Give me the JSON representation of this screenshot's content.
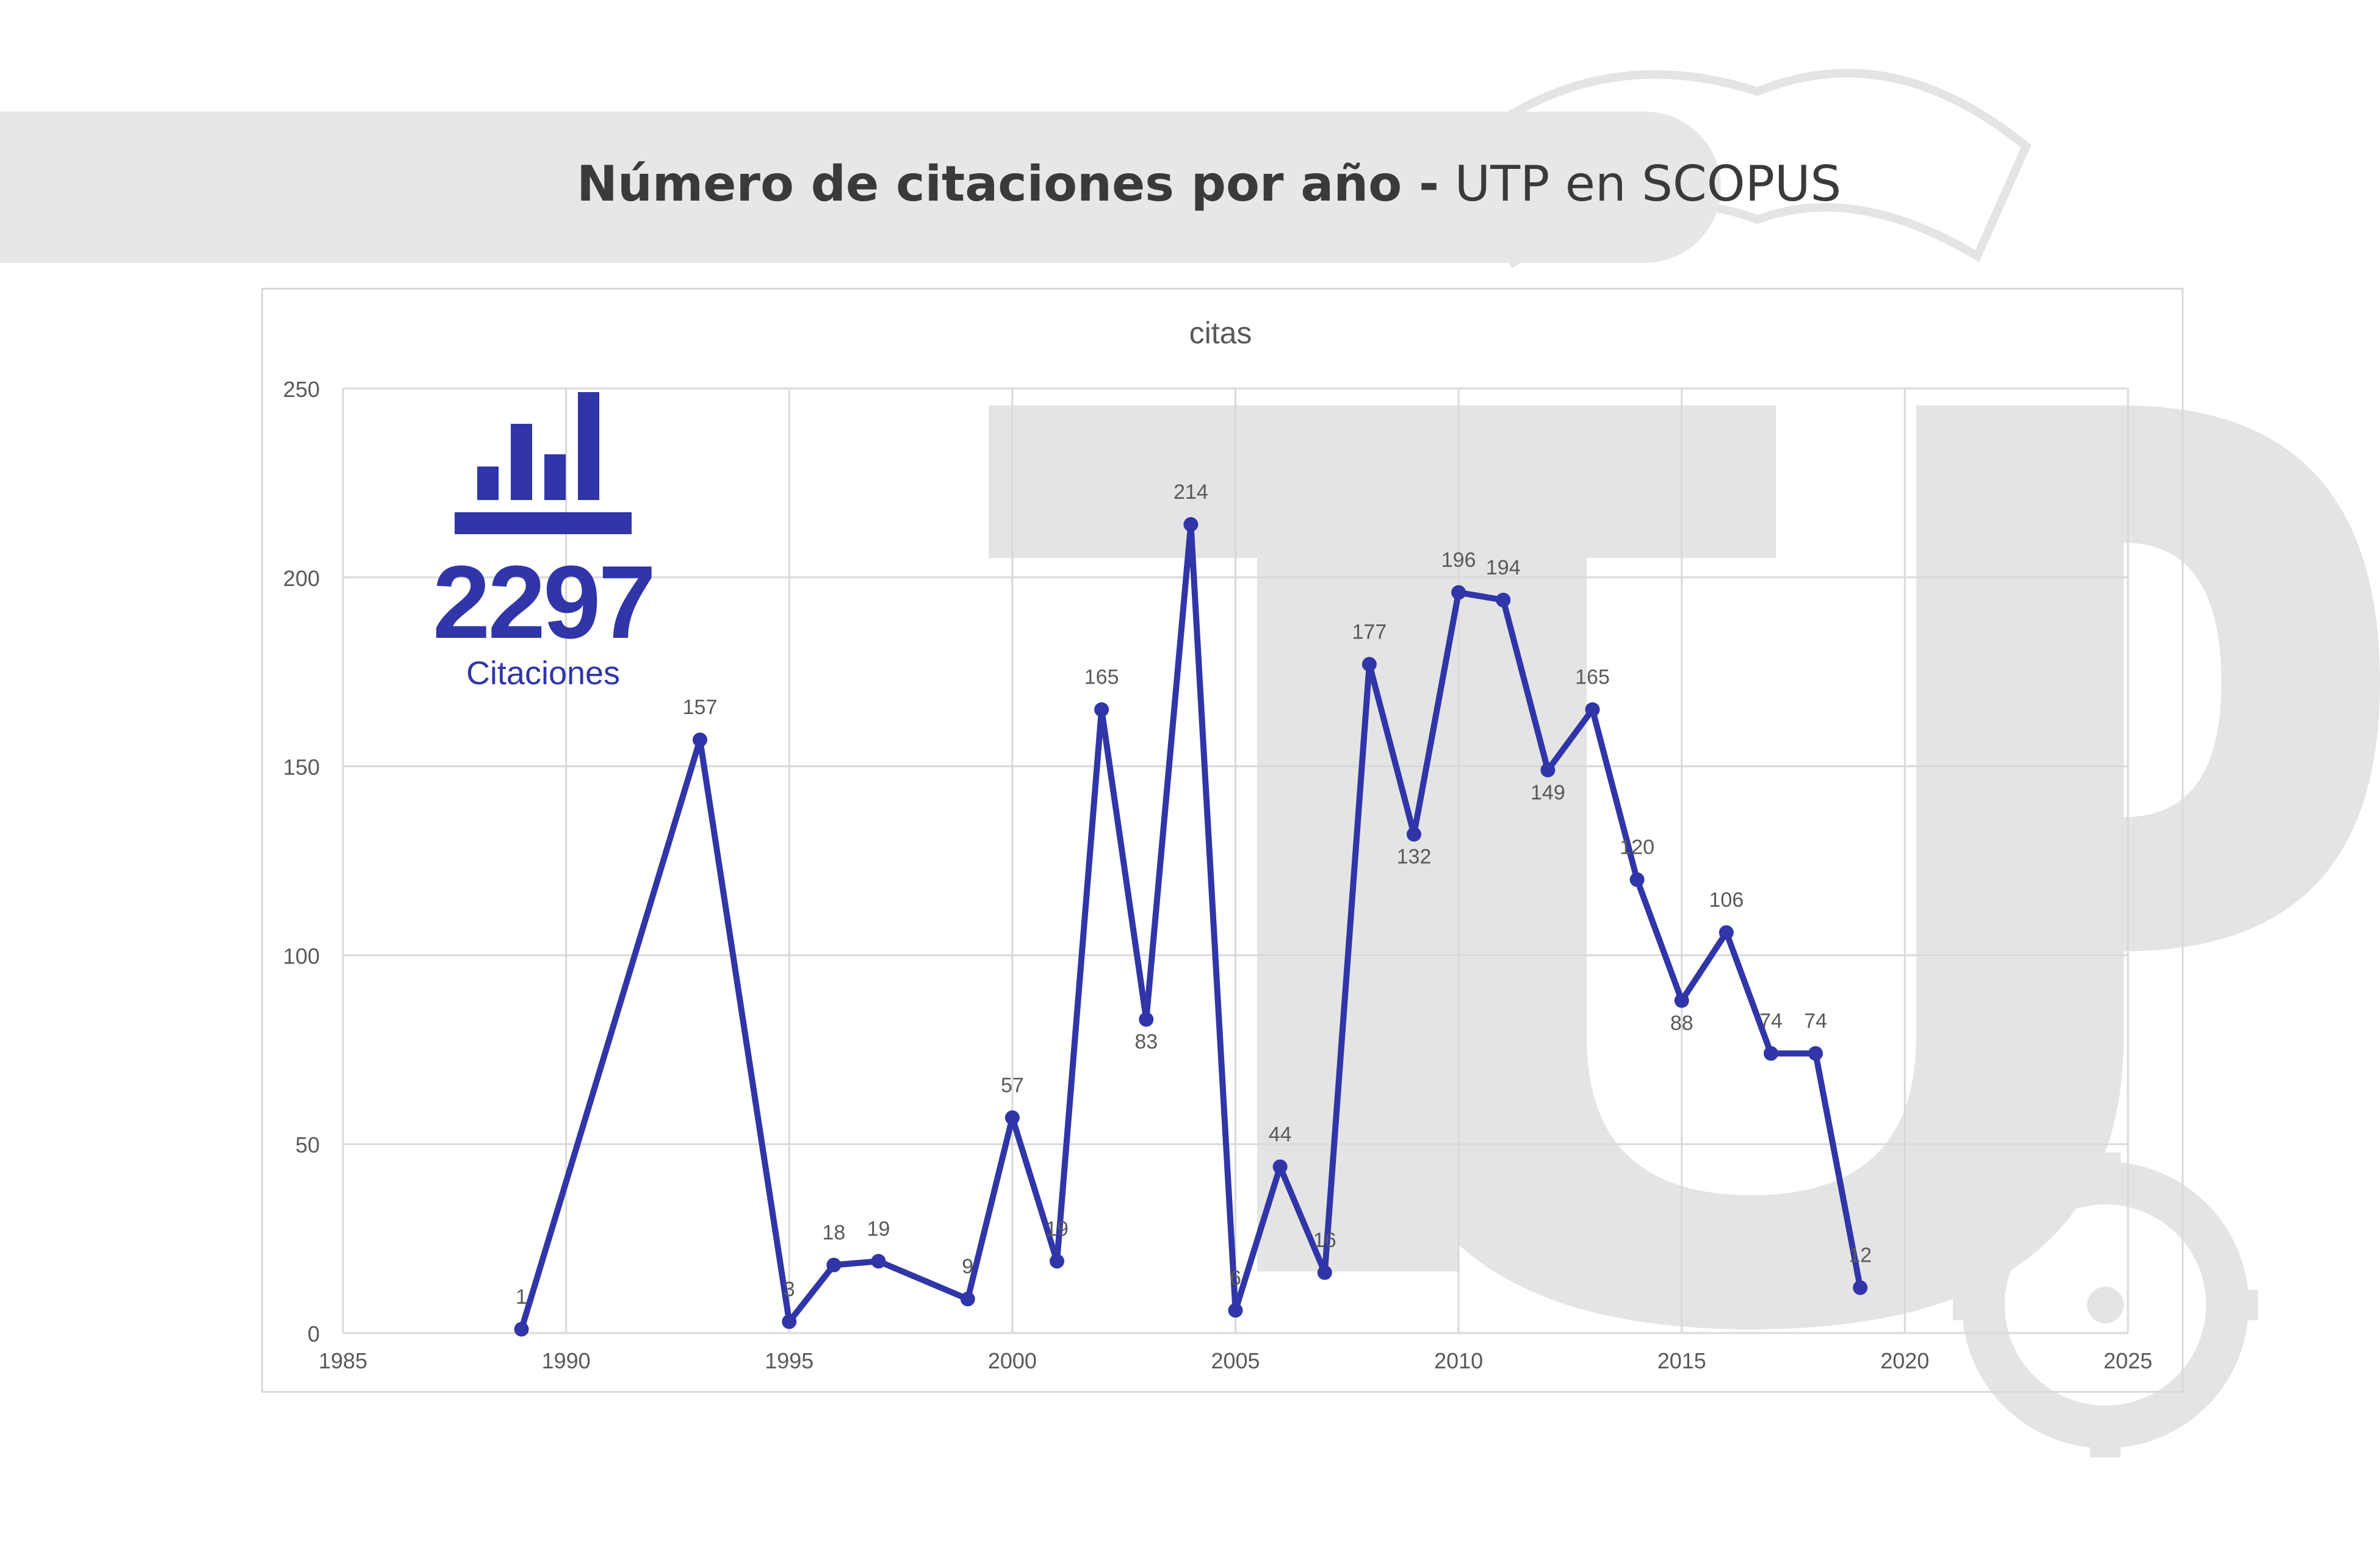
{
  "header": {
    "title_bold": "Número de citaciones por año -",
    "title_regular": "UTP en SCOPUS"
  },
  "kpi": {
    "value": "2297",
    "label": "Citaciones",
    "icon": "bar-chart-icon"
  },
  "colors": {
    "series": "#3035a8",
    "grid": "#d9d9d9",
    "axis_text": "#595959",
    "title_band": "#e7e7e7",
    "watermark": "#e4e4e4"
  },
  "chart_data": {
    "type": "line",
    "title": "citas",
    "xlabel": "",
    "ylabel": "",
    "xlim": [
      1985,
      2025
    ],
    "ylim": [
      0,
      250
    ],
    "x_ticks": [
      1985,
      1990,
      1995,
      2000,
      2005,
      2010,
      2015,
      2020,
      2025
    ],
    "y_ticks": [
      0,
      50,
      100,
      150,
      200,
      250
    ],
    "grid": true,
    "legend": "none",
    "series": [
      {
        "x": [
          1989,
          1993,
          1995,
          1996,
          1997,
          1999,
          2000,
          2001,
          2002,
          2003,
          2004,
          2005,
          2006,
          2007,
          2008,
          2009,
          2010,
          2011,
          2012,
          2013,
          2014,
          2015,
          2016,
          2017,
          2018,
          2019
        ],
        "y": [
          1,
          157,
          3,
          18,
          19,
          9,
          57,
          19,
          165,
          83,
          214,
          6,
          44,
          16,
          177,
          132,
          196,
          194,
          149,
          165,
          120,
          88,
          106,
          74,
          74,
          12
        ]
      }
    ]
  }
}
